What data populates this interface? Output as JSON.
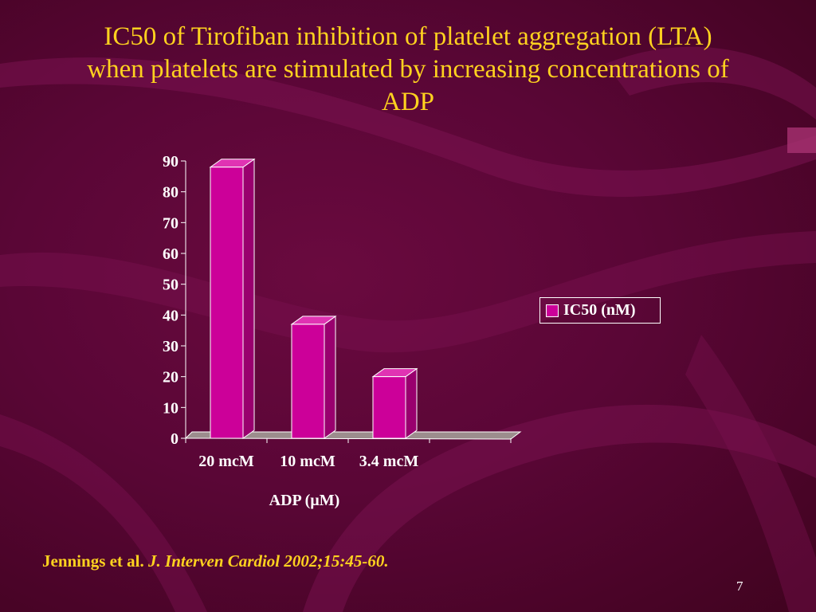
{
  "slide": {
    "title_lines": [
      "IC50 of Tirofiban inhibition of platelet aggregation (LTA)",
      "when platelets are stimulated by increasing concentrations of",
      "ADP"
    ],
    "citation_authors": "Jennings et al.",
    "citation_journal": "J. Interven Cardiol 2002;15:45-60.",
    "page_number": "7"
  },
  "colors": {
    "title": "#ffd21f",
    "bar_front": "#cc0099",
    "bar_top": "#e033b3",
    "bar_side": "#99006e",
    "floor": "#9c8d8d",
    "background": "#5a0636"
  },
  "chart_data": {
    "type": "bar",
    "categories": [
      "20 mcM",
      "10 mcM",
      "3.4 mcM"
    ],
    "series": [
      {
        "name": "IC50 (nM)",
        "values": [
          88,
          37,
          20
        ]
      }
    ],
    "title": "",
    "xlabel": "ADP (µM)",
    "ylabel": "",
    "ylim": [
      0,
      90
    ],
    "yticks": [
      0,
      10,
      20,
      30,
      40,
      50,
      60,
      70,
      80,
      90
    ],
    "grid": false,
    "legend_position": "right",
    "style": "3d"
  }
}
